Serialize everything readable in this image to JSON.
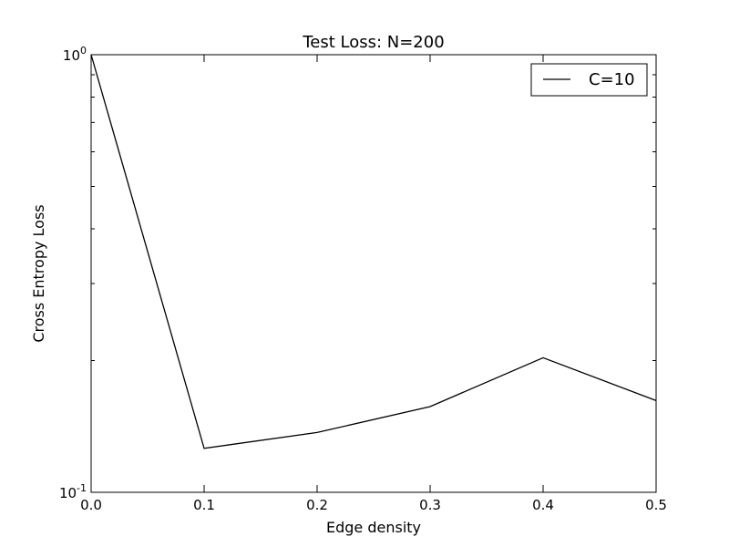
{
  "chart_data": {
    "type": "line",
    "title": "Test Loss: N=200",
    "xlabel": "Edge density",
    "ylabel": "Cross Entropy Loss",
    "xlim": [
      0.0,
      0.5
    ],
    "ylim": [
      0.1,
      1.0
    ],
    "yscale": "log",
    "grid": false,
    "legend_position": "top-right",
    "x_ticks": [
      "0.0",
      "0.1",
      "0.2",
      "0.3",
      "0.4",
      "0.5"
    ],
    "y_ticks": [
      {
        "base": "10",
        "exp": "-1"
      },
      {
        "base": "10",
        "exp": "0"
      }
    ],
    "series": [
      {
        "name": "C=10",
        "color": "#000000",
        "x": [
          0.0,
          0.1,
          0.2,
          0.3,
          0.4,
          0.5
        ],
        "y": [
          1.0,
          0.126,
          0.137,
          0.157,
          0.203,
          0.162
        ]
      }
    ]
  }
}
